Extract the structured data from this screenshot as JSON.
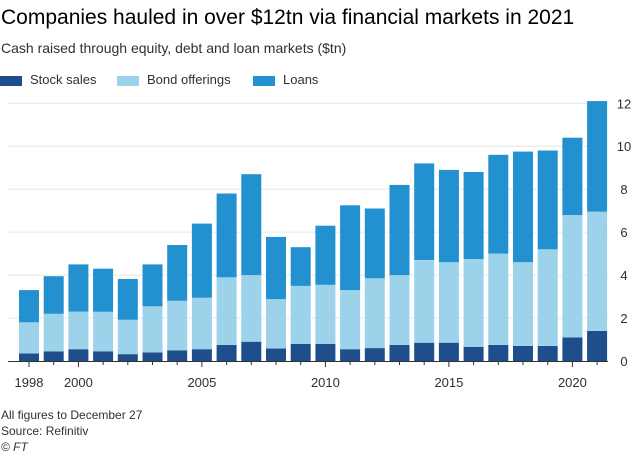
{
  "title": "Companies hauled in over $12tn via financial markets in 2021",
  "subtitle": "Cash raised through equity, debt and loan markets ($tn)",
  "colors": {
    "stock": "#1e4f8c",
    "bond": "#9dd3ea",
    "loans": "#2390cf",
    "grid": "#e8e6e4",
    "axis": "#33302e"
  },
  "legend": [
    {
      "label": "Stock sales",
      "color": "#1e4f8c"
    },
    {
      "label": "Bond offerings",
      "color": "#9dd3ea"
    },
    {
      "label": "Loans",
      "color": "#2390cf"
    }
  ],
  "chart_data": {
    "type": "bar",
    "stacked": true,
    "categories": [
      "1998",
      "1999",
      "2000",
      "2001",
      "2002",
      "2003",
      "2004",
      "2005",
      "2006",
      "2007",
      "2008",
      "2009",
      "2010",
      "2011",
      "2012",
      "2013",
      "2014",
      "2015",
      "2016",
      "2017",
      "2018",
      "2019",
      "2020",
      "2021"
    ],
    "series": [
      {
        "name": "Stock sales",
        "values": [
          0.35,
          0.45,
          0.55,
          0.45,
          0.32,
          0.4,
          0.5,
          0.55,
          0.75,
          0.9,
          0.58,
          0.8,
          0.8,
          0.55,
          0.6,
          0.75,
          0.85,
          0.85,
          0.65,
          0.75,
          0.7,
          0.7,
          1.1,
          1.4
        ]
      },
      {
        "name": "Bond offerings",
        "values": [
          1.45,
          1.75,
          1.75,
          1.85,
          1.6,
          2.15,
          2.3,
          2.4,
          3.15,
          3.1,
          2.3,
          2.7,
          2.75,
          2.75,
          3.25,
          3.25,
          3.85,
          3.75,
          4.1,
          4.25,
          3.9,
          4.5,
          5.7,
          5.55
        ]
      },
      {
        "name": "Loans",
        "values": [
          1.5,
          1.75,
          2.2,
          2.0,
          1.9,
          1.95,
          2.6,
          3.45,
          3.9,
          4.7,
          2.9,
          1.8,
          2.75,
          3.95,
          3.25,
          4.2,
          4.5,
          4.3,
          4.05,
          4.6,
          5.15,
          4.6,
          3.6,
          5.15
        ]
      }
    ],
    "xticks": [
      "1998",
      "2000",
      "2005",
      "2010",
      "2015",
      "2020"
    ],
    "yticks": [
      0,
      2,
      4,
      6,
      8,
      10,
      12
    ],
    "ylim": [
      0,
      12.2
    ],
    "grid": true,
    "legend_position": "top-left"
  },
  "footer": {
    "note": "All figures to December 27",
    "source": "Source: Refinitiv",
    "credit": "© FT"
  }
}
